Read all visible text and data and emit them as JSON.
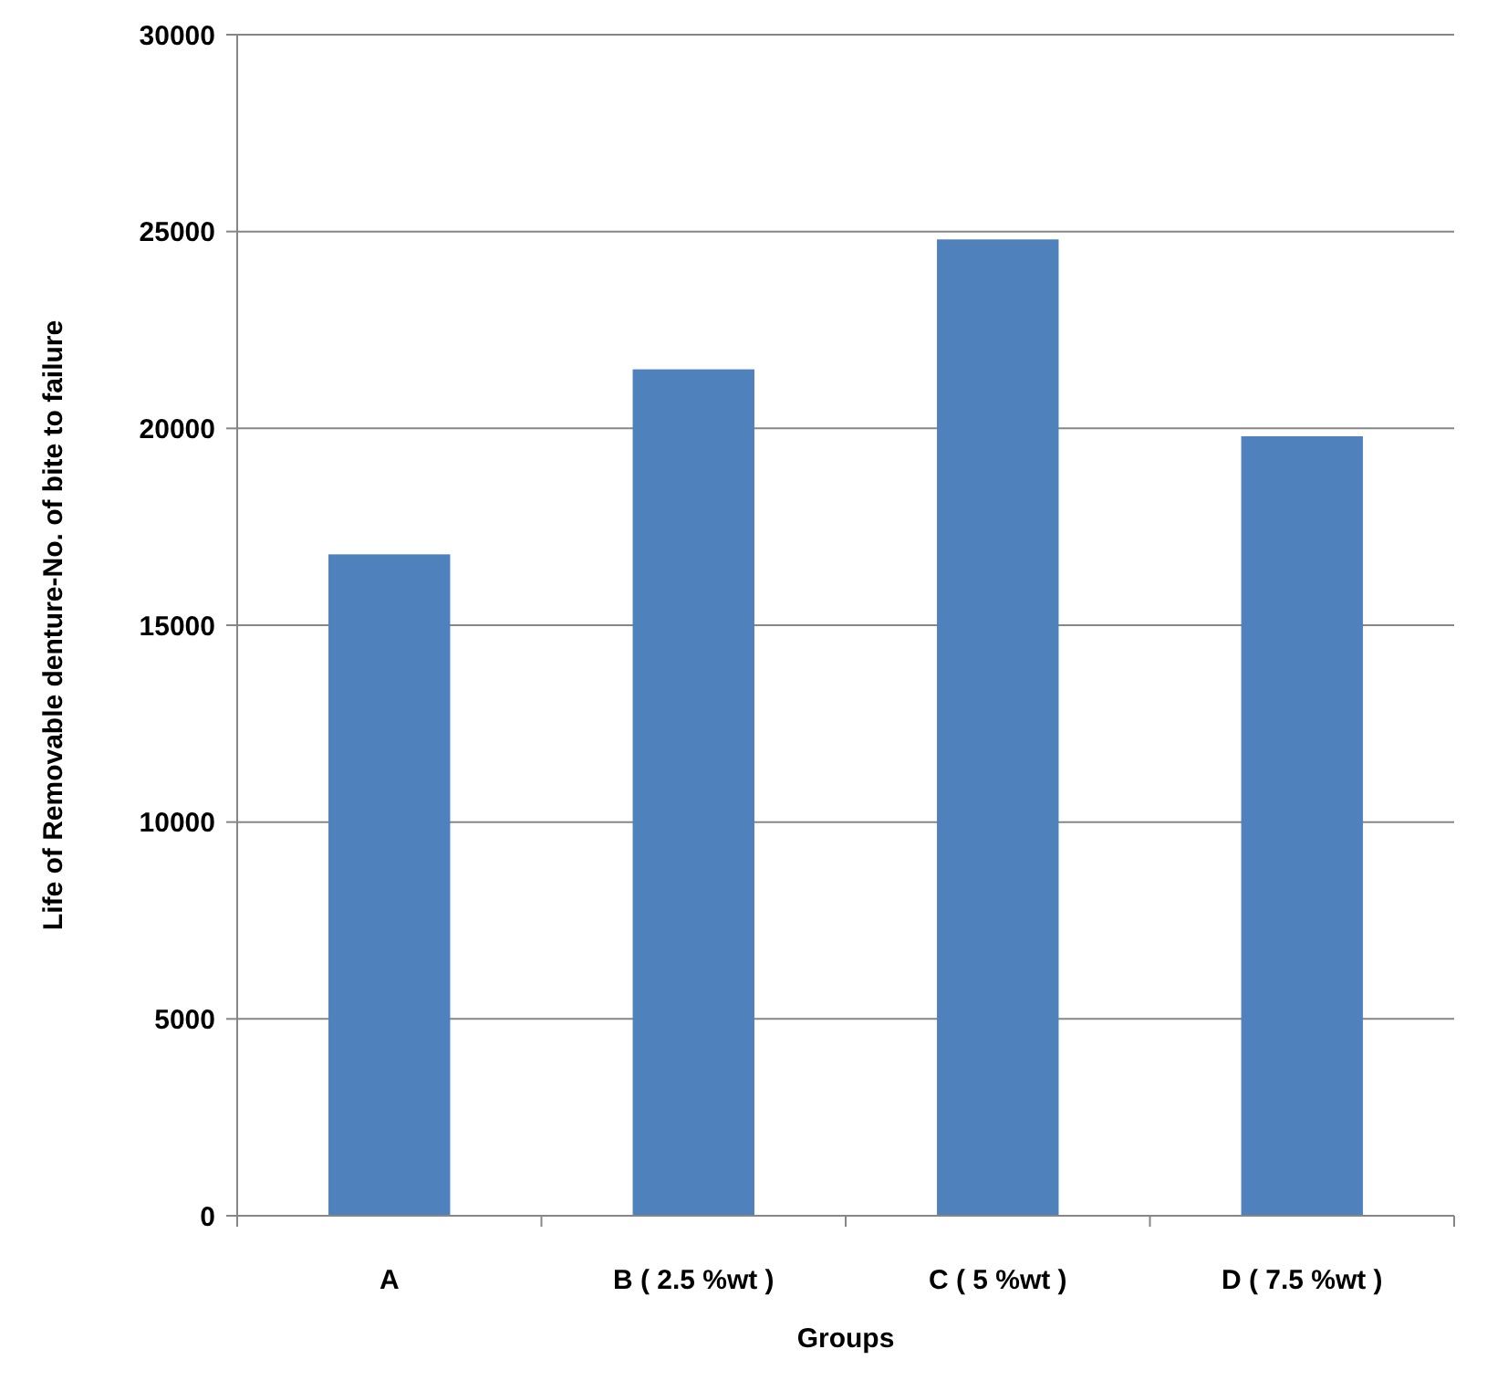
{
  "chart_data": {
    "type": "bar",
    "xlabel": "Groups",
    "ylabel": "Life of Removable denture-No. of bite to failure",
    "categories": [
      "A",
      "B ( 2.5 %wt )",
      "C ( 5 %wt )",
      "D ( 7.5 %wt )"
    ],
    "values": [
      16800,
      21500,
      24800,
      19800
    ],
    "color": "#4f81bd",
    "ylim": [
      0,
      30000
    ],
    "yticks": [
      0,
      5000,
      10000,
      15000,
      20000,
      25000,
      30000
    ],
    "grid": "y"
  }
}
